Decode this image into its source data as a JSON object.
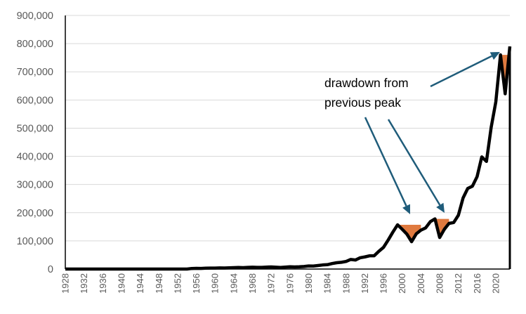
{
  "chart_data": {
    "type": "line",
    "title": "",
    "xlabel": "",
    "ylabel": "",
    "xlim": [
      1928,
      2023
    ],
    "ylim": [
      0,
      900000
    ],
    "grid": true,
    "legend": "none",
    "y_ticks": [
      "0",
      "100,000",
      "200,000",
      "300,000",
      "400,000",
      "500,000",
      "600,000",
      "700,000",
      "800,000",
      "900,000"
    ],
    "y_tick_values": [
      0,
      100000,
      200000,
      300000,
      400000,
      500000,
      600000,
      700000,
      800000,
      900000
    ],
    "x_ticks": [
      "1928",
      "1932",
      "1936",
      "1940",
      "1944",
      "1948",
      "1952",
      "1956",
      "1960",
      "1964",
      "1968",
      "1972",
      "1976",
      "1980",
      "1984",
      "1988",
      "1992",
      "1996",
      "2000",
      "2004",
      "2008",
      "2012",
      "2016",
      "2020"
    ],
    "annotation": {
      "line1": "drawdown from",
      "line2": "previous peak"
    },
    "colors": {
      "line": "#000000",
      "drawdown": "#e07a3f",
      "arrow": "#1f5c7a",
      "grid": "#d9d9d9",
      "axis": "#000000"
    },
    "series": [
      {
        "x": [
          1928,
          1929,
          1930,
          1931,
          1932,
          1933,
          1934,
          1935,
          1936,
          1937,
          1938,
          1939,
          1940,
          1941,
          1942,
          1943,
          1944,
          1945,
          1946,
          1947,
          1948,
          1949,
          1950,
          1951,
          1952,
          1953,
          1954,
          1955,
          1956,
          1957,
          1958,
          1959,
          1960,
          1961,
          1962,
          1963,
          1964,
          1965,
          1966,
          1967,
          1968,
          1969,
          1970,
          1971,
          1972,
          1973,
          1974,
          1975,
          1976,
          1977,
          1978,
          1979,
          1980,
          1981,
          1982,
          1983,
          1984,
          1985,
          1986,
          1987,
          1988,
          1989,
          1990,
          1991,
          1992,
          1993,
          1994,
          1995,
          1996,
          1997,
          1998,
          1999,
          2000,
          2001,
          2002,
          2003,
          2004,
          2005,
          2006,
          2007,
          2008,
          2009,
          2010,
          2011,
          2012,
          2013,
          2014,
          2015,
          2016,
          2017,
          2018,
          2019,
          2020,
          2021,
          2022,
          2023
        ],
        "values": [
          0,
          0,
          0,
          0,
          0,
          0,
          0,
          0,
          0,
          0,
          0,
          0,
          0,
          0,
          0,
          0,
          0,
          0,
          0,
          0,
          0,
          0,
          0,
          0,
          0,
          0,
          0,
          2000,
          2500,
          2300,
          3000,
          3300,
          3400,
          4000,
          3800,
          4500,
          5000,
          5500,
          5000,
          6000,
          6500,
          6000,
          6000,
          7000,
          7500,
          6500,
          5500,
          7000,
          8000,
          7500,
          8000,
          9000,
          11000,
          10500,
          12500,
          14500,
          15500,
          19500,
          22500,
          24000,
          27000,
          34000,
          32000,
          40000,
          43000,
          47000,
          47000,
          63000,
          77000,
          103000,
          131000,
          157000,
          141000,
          124000,
          97000,
          125000,
          138000,
          146000,
          168000,
          178000,
          112000,
          141000,
          162000,
          165000,
          191000,
          252000,
          286000,
          294000,
          328000,
          398000,
          382000,
          502000,
          593000,
          760000,
          622000,
          790000
        ]
      }
    ],
    "drawdown_periods": [
      {
        "peak_x": 1999,
        "peak_value": 157000,
        "end_x": 2004
      },
      {
        "peak_x": 2007,
        "peak_value": 178000,
        "end_x": 2010
      },
      {
        "peak_x": 2021,
        "peak_value": 760000,
        "end_x": 2023
      }
    ]
  }
}
